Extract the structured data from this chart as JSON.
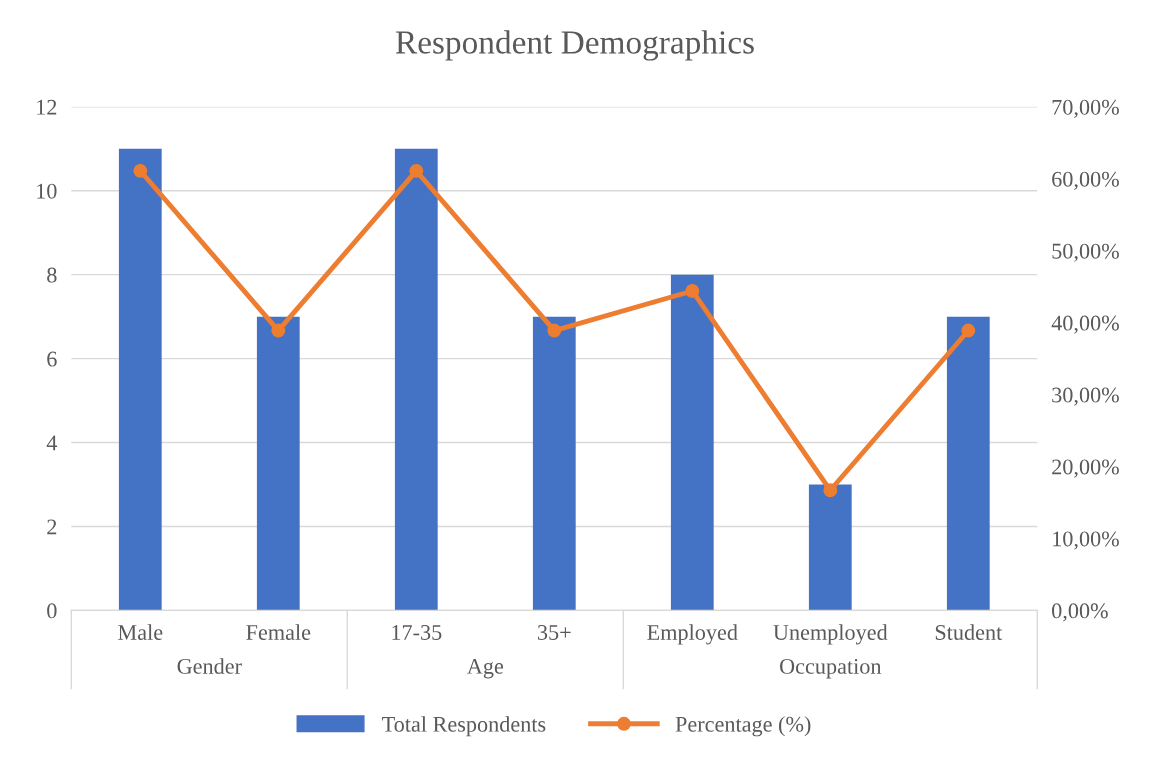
{
  "chart_data": {
    "type": "bar",
    "title": "Respondent Demographics",
    "categories": [
      "Male",
      "Female",
      "17-35",
      "35+",
      "Employed",
      "Unemployed",
      "Student"
    ],
    "series": [
      {
        "name": "Total Respondents",
        "color": "#4472c4",
        "values": [
          11,
          7,
          11,
          7,
          8,
          3,
          7
        ]
      },
      {
        "name": "Percentage (%)",
        "type": "line",
        "axis": "y2",
        "color": "#ed7d31",
        "marker": "circle",
        "values": [
          61.1,
          38.9,
          61.1,
          38.9,
          44.4,
          16.7,
          38.9
        ]
      }
    ],
    "ylim": [
      0,
      12
    ],
    "yticks": [
      0,
      2,
      4,
      6,
      8,
      10,
      12
    ],
    "y2lim": [
      0,
      70
    ],
    "y2ticks": [
      {
        "value": 0,
        "label": "0,00%"
      },
      {
        "value": 10,
        "label": "10,00%"
      },
      {
        "value": 20,
        "label": "20,00%"
      },
      {
        "value": 30,
        "label": "30,00%"
      },
      {
        "value": 40,
        "label": "40,00%"
      },
      {
        "value": 50,
        "label": "50,00%"
      },
      {
        "value": 60,
        "label": "60,00%"
      },
      {
        "value": 70,
        "label": "70,00%"
      }
    ],
    "grid": "y",
    "legend": "bottom",
    "annotations": [
      "Gender",
      "Age",
      "Occupation"
    ]
  }
}
